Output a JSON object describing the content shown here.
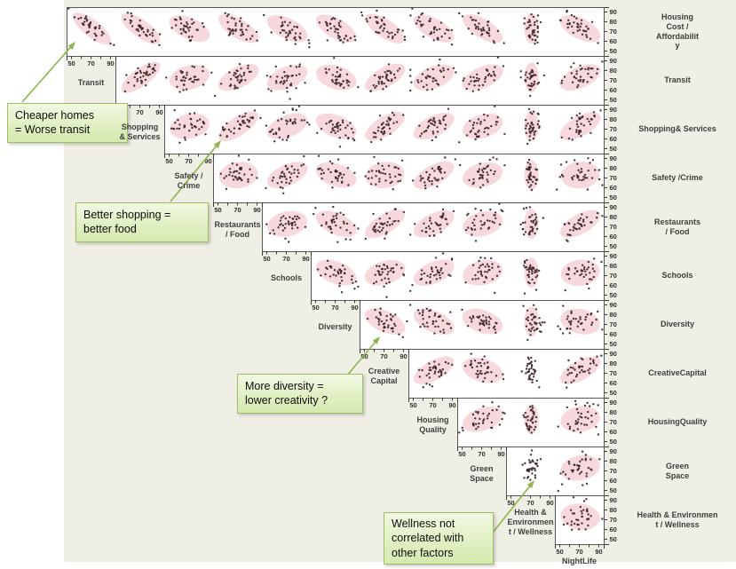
{
  "colors": {
    "panel_bg": "#f0efe6",
    "cell_bg": "#ffffff",
    "grid_line": "#58585a",
    "ellipse_fill": "#f2bfc6",
    "dot": "#3b2629",
    "tick": "#3c3c3c",
    "label_text": "#3e3e3e",
    "callout_border": "#9dbf5f",
    "callout_bg": "#e1f0c3",
    "arrow": "#8fb750"
  },
  "chart_data": {
    "type": "scatter_matrix",
    "title": "",
    "variables": [
      "Housing Cost / Affordability",
      "Transit",
      "Shopping & Services",
      "Safety / Crime",
      "Restaurants / Food",
      "Schools",
      "Diversity",
      "Creative Capital",
      "Housing Quality",
      "Green Space",
      "Health & Environment / Wellness",
      "NightLife"
    ],
    "row_variables": [
      "Housing Cost / Affordability",
      "Transit",
      "Shopping & Services",
      "Safety / Crime",
      "Restaurants / Food",
      "Schools",
      "Diversity",
      "Creative Capital",
      "Housing Quality",
      "Green Space",
      "Health & Environment / Wellness"
    ],
    "col_variables": [
      "Transit",
      "Shopping & Services",
      "Safety / Crime",
      "Restaurants / Food",
      "Schools",
      "Diversity",
      "Creative Capital",
      "Housing Quality",
      "Green Space",
      "Health & Environment / Wellness",
      "NightLife"
    ],
    "diagonal_labels": [
      "Transit",
      "Shopping\n& Services",
      "Safety /\nCrime",
      "Restaurants\n/ Food",
      "Schools",
      "Diversity",
      "Creative\nCapital",
      "Housing\nQuality",
      "Green\nSpace",
      "Health &\nEnvironmen\nt / Wellness",
      "NightLife"
    ],
    "right_labels": [
      "Housing\nCost /\nAffordabilit\ny",
      "Transit",
      "Shopping& Services",
      "Safety /Crime",
      "Restaurants\n/ Food",
      "Schools",
      "Diversity",
      "CreativeCapital",
      "HousingQuality",
      "Green\nSpace",
      "Health & Environmen\nt / Wellness"
    ],
    "x_tick_labels": [
      "50",
      "70",
      "90"
    ],
    "x_tick_values": [
      50,
      70,
      90
    ],
    "minor_tick_values": [
      60,
      80
    ],
    "y_tick_labels": [
      "90",
      "80",
      "70",
      "60",
      "50"
    ],
    "y_tick_values": [
      90,
      80,
      70,
      60,
      50
    ],
    "axis_range": [
      45,
      95
    ],
    "grid": true,
    "points_per_cell": 36,
    "correlations": [
      [
        -0.8,
        -0.75,
        -0.5,
        -0.65,
        -0.55,
        -0.6,
        -0.7,
        -0.6,
        -0.65,
        -0.35,
        -0.55
      ],
      [
        0.75,
        0.3,
        0.55,
        0.45,
        -0.35,
        0.6,
        0.45,
        0.5,
        0.05,
        0.5
      ],
      [
        0.25,
        0.7,
        0.45,
        -0.45,
        0.65,
        0.55,
        0.35,
        0.05,
        0.6
      ],
      [
        0.15,
        0.5,
        -0.4,
        0.15,
        0.6,
        0.3,
        0.0,
        0.1
      ],
      [
        0.25,
        -0.5,
        0.65,
        0.55,
        0.3,
        0.05,
        0.6
      ],
      [
        -0.45,
        0.35,
        0.5,
        0.25,
        0.0,
        0.15
      ],
      [
        -0.5,
        -0.5,
        -0.4,
        0.0,
        -0.25
      ],
      [
        0.6,
        -0.35,
        0.0,
        0.6
      ],
      [
        0.4,
        0.0,
        0.2
      ],
      [
        0.0,
        0.25
      ],
      [
        -0.15
      ]
    ],
    "no_ellipse_cells": [
      [
        7,
        9
      ],
      [
        9,
        9
      ]
    ],
    "narrow_x_columns": [
      9
    ]
  },
  "annotations": [
    {
      "text": "Cheaper homes\n= Worse transit",
      "points_to": "Housing Cost / Affordability vs Transit"
    },
    {
      "text": "Better shopping =\nbetter food",
      "points_to": "Shopping & Services vs Restaurants / Food"
    },
    {
      "text": "More diversity =\nlower creativity ?",
      "points_to": "Diversity vs Creative Capital"
    },
    {
      "text": "Wellness not\ncorrelated with\nother factors",
      "points_to": "Green Space vs Health & Environment / Wellness"
    }
  ]
}
